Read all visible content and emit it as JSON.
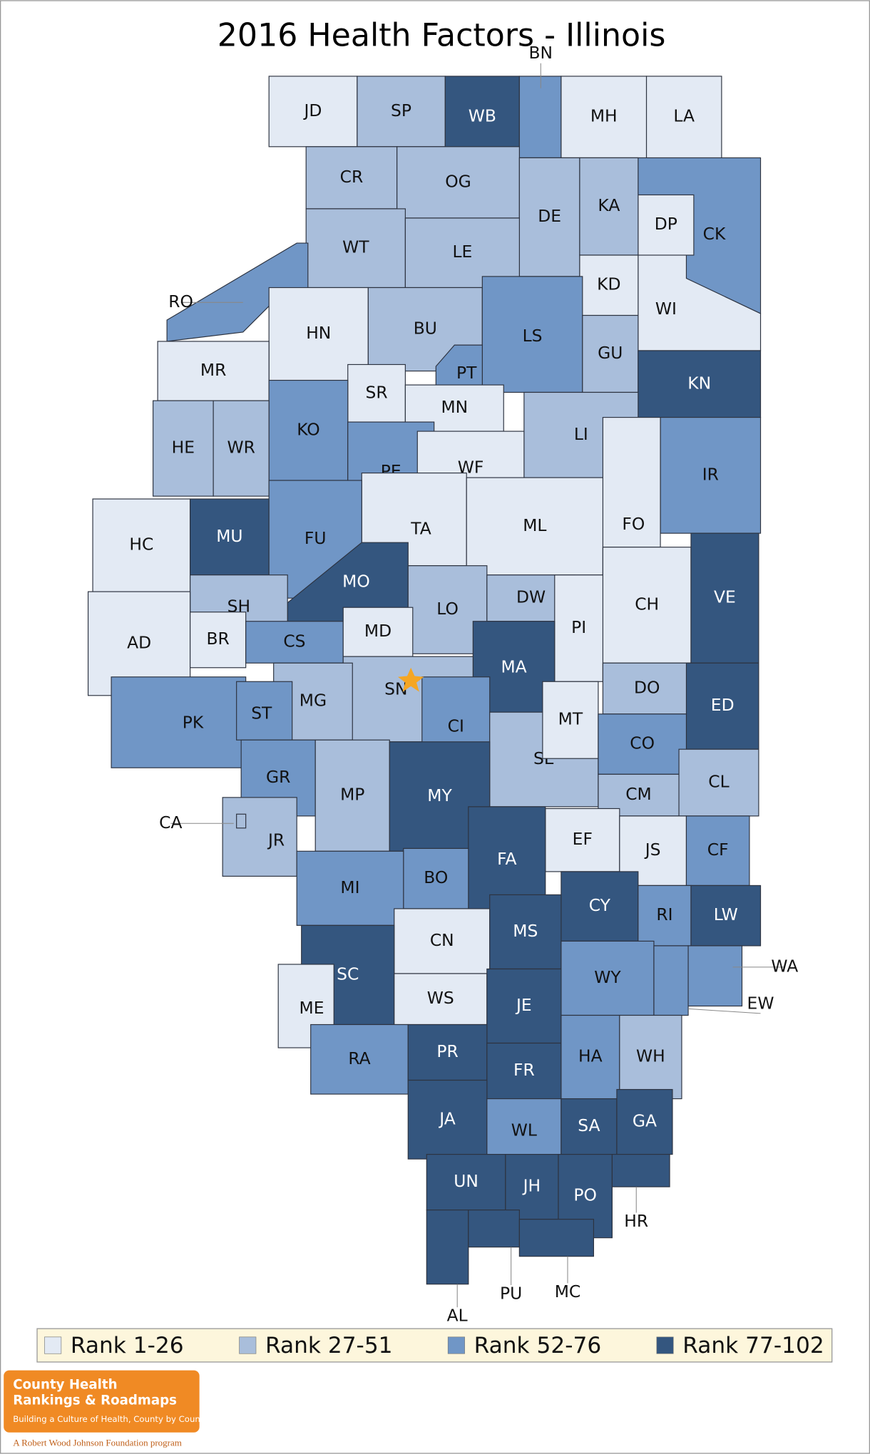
{
  "title": "2016 Health Factors - Illinois",
  "legend": [
    {
      "label": "Rank 1-26",
      "color": "#e3eaf4",
      "counties": [
        "JD",
        "MH",
        "LA",
        "DP",
        "KD",
        "WI",
        "HN",
        "MR",
        "SR",
        "MN",
        "WF",
        "TA",
        "ML",
        "FO",
        "HC",
        "AD",
        "BR",
        "MD",
        "CH",
        "PI",
        "MT",
        "EF",
        "JS",
        "CN",
        "WS",
        "ME"
      ]
    },
    {
      "label": "Rank 27-51",
      "color": "#a9bedb",
      "counties": [
        "SP",
        "CR",
        "OG",
        "DE",
        "KA",
        "WT",
        "LE",
        "BU",
        "GU",
        "LI",
        "HE",
        "WR",
        "SH",
        "LO",
        "DW",
        "MG",
        "SN",
        "DO",
        "SE",
        "CM",
        "CL",
        "MP",
        "JR",
        "WH",
        "CA"
      ]
    },
    {
      "label": "Rank 52-76",
      "color": "#7096c6",
      "counties": [
        "BN",
        "CK",
        "RO",
        "PT",
        "LS",
        "KO",
        "PE",
        "IR",
        "FU",
        "CS",
        "PK",
        "ST",
        "CI",
        "CO",
        "GR",
        "MI",
        "BO",
        "RI",
        "CF",
        "WA",
        "WY",
        "RA",
        "HA",
        "WL",
        "EW"
      ]
    },
    {
      "label": "Rank 77-102",
      "color": "#34567f",
      "counties": [
        "WB",
        "KN",
        "MU",
        "MO",
        "MA",
        "VE",
        "ED",
        "MY",
        "FA",
        "CY",
        "LW",
        "SC",
        "MS",
        "JE",
        "PR",
        "FR",
        "JA",
        "SA",
        "GA",
        "UN",
        "JH",
        "PO",
        "HR",
        "PU",
        "MC",
        "AL"
      ]
    }
  ],
  "logo": {
    "line1": "County Health",
    "line2": "Rankings & Roadmaps",
    "tagline": "Building a Culture of Health, County by County",
    "footer": "A Robert Wood Johnson Foundation program"
  }
}
